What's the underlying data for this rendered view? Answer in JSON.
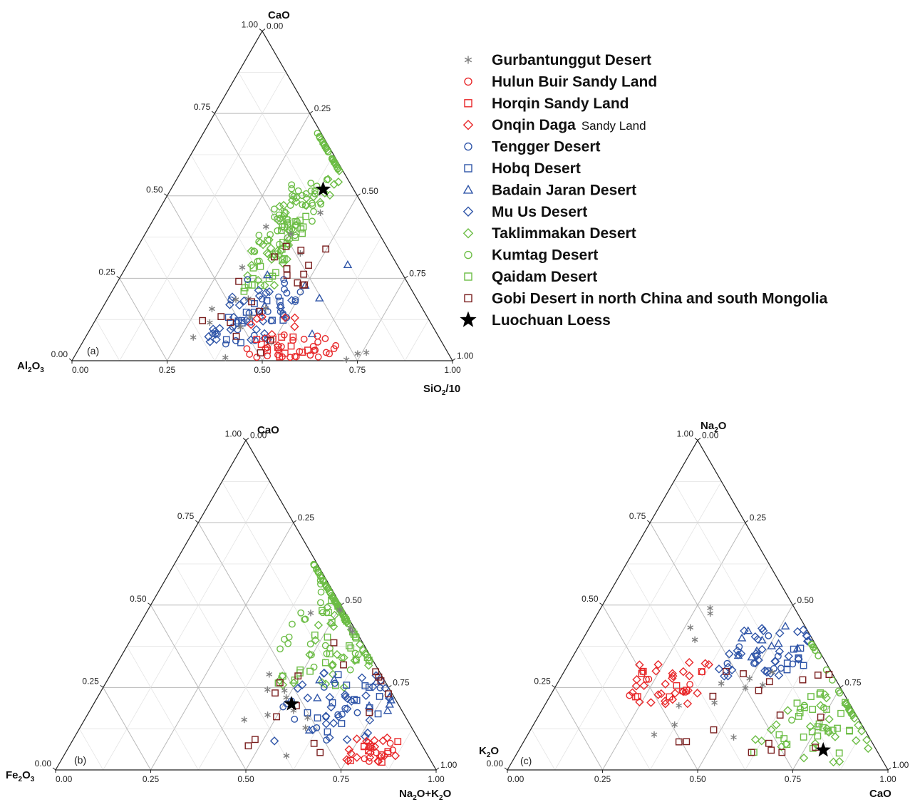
{
  "legend": {
    "items": [
      {
        "name": "Gurbantunggut Desert",
        "marker": "asterisk",
        "color": "#7f7f7f"
      },
      {
        "name": "Hulun Buir Sandy Land",
        "marker": "circle",
        "color": "#e8282a"
      },
      {
        "name": "Horqin Sandy Land",
        "marker": "square",
        "color": "#e8282a"
      },
      {
        "name": "Onqin Daga",
        "suffix": "Sandy Land",
        "marker": "diamond",
        "color": "#e8282a"
      },
      {
        "name": "Tengger Desert",
        "marker": "circle",
        "color": "#2f55a8"
      },
      {
        "name": "Hobq Desert",
        "marker": "square",
        "color": "#2f55a8"
      },
      {
        "name": "Badain Jaran Desert",
        "marker": "triangle",
        "color": "#2f55a8"
      },
      {
        "name": "Mu Us Desert",
        "marker": "diamond",
        "color": "#2f55a8"
      },
      {
        "name": "Taklimmakan Desert",
        "marker": "diamond",
        "color": "#6cbd45"
      },
      {
        "name": "Kumtag Desert",
        "marker": "circle",
        "color": "#6cbd45"
      },
      {
        "name": "Qaidam Desert",
        "marker": "square",
        "color": "#6cbd45"
      },
      {
        "name": "Gobi Desert in north China and south Mongolia",
        "marker": "square",
        "color": "#7a1e1e"
      },
      {
        "name": "Luochuan Loess",
        "marker": "star",
        "color": "#000000"
      }
    ]
  },
  "chart_data": [
    {
      "type": "scatter",
      "subtype": "ternary",
      "panel_label": "(a)",
      "vertices": {
        "top": "CaO",
        "left_main": "Al",
        "left_sub": "2",
        "left_tail": "O",
        "left_sub2": "3",
        "right_main": "SiO",
        "right_sub": "2",
        "right_tail": "/10"
      },
      "ticks": [
        "0.00",
        "0.25",
        "0.50",
        "0.75",
        "1.00"
      ],
      "axes": {
        "bottom": "SiO2/10",
        "left_edge": "CaO",
        "right_edge": "Al2O3"
      },
      "grid": true,
      "clusters": [
        {
          "series": 9,
          "n": 22,
          "x": [
            0.36,
            0.44
          ],
          "y": [
            0.55,
            0.9
          ]
        },
        {
          "series": 8,
          "n": 16,
          "x": [
            0.38,
            0.45
          ],
          "y": [
            0.5,
            0.88
          ]
        },
        {
          "series": 9,
          "n": 45,
          "x": [
            0.3,
            0.42
          ],
          "y": [
            0.3,
            0.55
          ]
        },
        {
          "series": 8,
          "n": 35,
          "x": [
            0.3,
            0.42
          ],
          "y": [
            0.22,
            0.5
          ]
        },
        {
          "series": 10,
          "n": 30,
          "x": [
            0.33,
            0.42
          ],
          "y": [
            0.2,
            0.45
          ]
        },
        {
          "series": 4,
          "n": 28,
          "x": [
            0.32,
            0.5
          ],
          "y": [
            0.05,
            0.25
          ]
        },
        {
          "series": 7,
          "n": 28,
          "x": [
            0.32,
            0.5
          ],
          "y": [
            0.05,
            0.22
          ]
        },
        {
          "series": 5,
          "n": 14,
          "x": [
            0.32,
            0.5
          ],
          "y": [
            0.05,
            0.2
          ]
        },
        {
          "series": 6,
          "n": 6,
          "x": [
            0.35,
            0.6
          ],
          "y": [
            0.05,
            0.3
          ]
        },
        {
          "series": 1,
          "n": 30,
          "x": [
            0.44,
            0.68
          ],
          "y": [
            0.01,
            0.08
          ]
        },
        {
          "series": 2,
          "n": 12,
          "x": [
            0.44,
            0.62
          ],
          "y": [
            0.01,
            0.08
          ]
        },
        {
          "series": 3,
          "n": 8,
          "x": [
            0.4,
            0.55
          ],
          "y": [
            0.03,
            0.15
          ]
        },
        {
          "series": 0,
          "n": 14,
          "x": [
            0.25,
            0.45
          ],
          "y": [
            0.0,
            0.45
          ]
        },
        {
          "series": 0,
          "n": 3,
          "x": [
            0.68,
            0.8
          ],
          "y": [
            0.0,
            0.03
          ]
        },
        {
          "series": 11,
          "n": 20,
          "x": [
            0.28,
            0.5
          ],
          "y": [
            0.02,
            0.35
          ]
        }
      ],
      "star": {
        "x": 0.4,
        "y": 0.52
      }
    },
    {
      "type": "scatter",
      "subtype": "ternary",
      "panel_label": "(b)",
      "vertices": {
        "top": "CaO",
        "left_main": "Fe",
        "left_sub": "2",
        "left_tail": "O",
        "left_sub2": "3",
        "right_main": "Na",
        "right_sub": "2",
        "right_tail": "O+K",
        "right_sub2": "2",
        "right_tail2": "O"
      },
      "ticks": [
        "0.00",
        "0.25",
        "0.50",
        "0.75",
        "1.00"
      ],
      "axes": {
        "bottom": "Na2O+K2O",
        "left_edge": "CaO",
        "right_edge": "Fe2O3"
      },
      "grid": true,
      "clusters": [
        {
          "series": 9,
          "n": 18,
          "x": [
            0.45,
            0.62
          ],
          "y": [
            0.55,
            0.92
          ]
        },
        {
          "series": 8,
          "n": 16,
          "x": [
            0.48,
            0.62
          ],
          "y": [
            0.5,
            0.88
          ]
        },
        {
          "series": 9,
          "n": 40,
          "x": [
            0.4,
            0.65
          ],
          "y": [
            0.3,
            0.6
          ]
        },
        {
          "series": 8,
          "n": 35,
          "x": [
            0.45,
            0.7
          ],
          "y": [
            0.25,
            0.58
          ]
        },
        {
          "series": 10,
          "n": 30,
          "x": [
            0.45,
            0.68
          ],
          "y": [
            0.25,
            0.55
          ]
        },
        {
          "series": 7,
          "n": 30,
          "x": [
            0.5,
            0.78
          ],
          "y": [
            0.08,
            0.3
          ]
        },
        {
          "series": 4,
          "n": 14,
          "x": [
            0.5,
            0.75
          ],
          "y": [
            0.08,
            0.28
          ]
        },
        {
          "series": 5,
          "n": 14,
          "x": [
            0.55,
            0.78
          ],
          "y": [
            0.1,
            0.3
          ]
        },
        {
          "series": 6,
          "n": 10,
          "x": [
            0.55,
            0.8
          ],
          "y": [
            0.12,
            0.3
          ]
        },
        {
          "series": 3,
          "n": 20,
          "x": [
            0.74,
            0.88
          ],
          "y": [
            0.02,
            0.1
          ]
        },
        {
          "series": 2,
          "n": 10,
          "x": [
            0.74,
            0.86
          ],
          "y": [
            0.02,
            0.09
          ]
        },
        {
          "series": 1,
          "n": 6,
          "x": [
            0.75,
            0.86
          ],
          "y": [
            0.02,
            0.09
          ]
        },
        {
          "series": 0,
          "n": 14,
          "x": [
            0.4,
            0.6
          ],
          "y": [
            0.0,
            0.55
          ]
        },
        {
          "series": 11,
          "n": 16,
          "x": [
            0.45,
            0.8
          ],
          "y": [
            0.05,
            0.4
          ]
        }
      ],
      "star": {
        "x": 0.52,
        "y": 0.2
      }
    },
    {
      "type": "scatter",
      "subtype": "ternary",
      "panel_label": "(c)",
      "vertices": {
        "top_main": "Na",
        "top_sub": "2",
        "top_tail": "O",
        "left_main": "K",
        "left_sub": "2",
        "left_tail": "O",
        "right_main": "CaO"
      },
      "ticks": [
        "0.00",
        "0.25",
        "0.50",
        "0.75",
        "1.00"
      ],
      "axes": {
        "bottom": "CaO",
        "left_edge": "Na2O",
        "right_edge": "K2O"
      },
      "grid": true,
      "clusters": [
        {
          "series": 3,
          "n": 28,
          "x": [
            0.17,
            0.4
          ],
          "y": [
            0.2,
            0.33
          ]
        },
        {
          "series": 1,
          "n": 8,
          "x": [
            0.2,
            0.38
          ],
          "y": [
            0.22,
            0.32
          ]
        },
        {
          "series": 2,
          "n": 8,
          "x": [
            0.2,
            0.38
          ],
          "y": [
            0.22,
            0.32
          ]
        },
        {
          "series": 7,
          "n": 35,
          "x": [
            0.4,
            0.6
          ],
          "y": [
            0.28,
            0.43
          ]
        },
        {
          "series": 6,
          "n": 10,
          "x": [
            0.4,
            0.58
          ],
          "y": [
            0.33,
            0.44
          ]
        },
        {
          "series": 4,
          "n": 8,
          "x": [
            0.4,
            0.6
          ],
          "y": [
            0.3,
            0.42
          ]
        },
        {
          "series": 5,
          "n": 8,
          "x": [
            0.45,
            0.62
          ],
          "y": [
            0.3,
            0.4
          ]
        },
        {
          "series": 8,
          "n": 38,
          "x": [
            0.6,
            0.95
          ],
          "y": [
            0.02,
            0.25
          ]
        },
        {
          "series": 10,
          "n": 28,
          "x": [
            0.62,
            0.85
          ],
          "y": [
            0.05,
            0.25
          ]
        },
        {
          "series": 9,
          "n": 14,
          "x": [
            0.65,
            0.85
          ],
          "y": [
            0.15,
            0.5
          ]
        },
        {
          "series": 0,
          "n": 14,
          "x": [
            0.25,
            0.58
          ],
          "y": [
            0.08,
            0.55
          ]
        },
        {
          "series": 11,
          "n": 18,
          "x": [
            0.35,
            0.8
          ],
          "y": [
            0.05,
            0.3
          ]
        }
      ],
      "star": {
        "x": 0.8,
        "y": 0.06
      }
    }
  ]
}
